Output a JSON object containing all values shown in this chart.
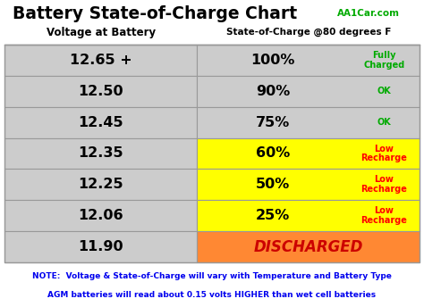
{
  "title_main": "Battery State-of-Charge Chart",
  "title_sub": "AA1Car.com",
  "col1_header": "Voltage at Battery",
  "col2_header": "State-of-Charge @80 degrees F",
  "rows": [
    {
      "voltage": "12.65 +",
      "charge": "100%",
      "label": "Fully\nCharged",
      "label_color": "#00aa00",
      "right_bg": "#cccccc",
      "left_bg": "#cccccc"
    },
    {
      "voltage": "12.50",
      "charge": "90%",
      "label": "OK",
      "label_color": "#00aa00",
      "right_bg": "#cccccc",
      "left_bg": "#cccccc"
    },
    {
      "voltage": "12.45",
      "charge": "75%",
      "label": "OK",
      "label_color": "#00aa00",
      "right_bg": "#cccccc",
      "left_bg": "#cccccc"
    },
    {
      "voltage": "12.35",
      "charge": "60%",
      "label": "Low\nRecharge",
      "label_color": "#ff0000",
      "right_bg": "#ffff00",
      "left_bg": "#cccccc"
    },
    {
      "voltage": "12.25",
      "charge": "50%",
      "label": "Low\nRecharge",
      "label_color": "#ff0000",
      "right_bg": "#ffff00",
      "left_bg": "#cccccc"
    },
    {
      "voltage": "12.06",
      "charge": "25%",
      "label": "Low\nRecharge",
      "label_color": "#ff0000",
      "right_bg": "#ffff00",
      "left_bg": "#cccccc"
    },
    {
      "voltage": "11.90",
      "charge": "DISCHARGED",
      "label": "",
      "label_color": "#cc0000",
      "right_bg": "#ff8833",
      "left_bg": "#cccccc"
    }
  ],
  "note_line1": "NOTE:  Voltage & State-of-Charge will vary with Temperature and Battery Type",
  "note_line2": "AGM batteries will read about 0.15 volts HIGHER than wet cell batteries",
  "note_color": "#0000ee",
  "border_color": "#999999",
  "bg_color": "#ffffff",
  "title_color": "#000000",
  "title_sub_color": "#00aa00",
  "header_color": "#000000",
  "figsize": [
    4.74,
    3.44
  ],
  "dpi": 100
}
